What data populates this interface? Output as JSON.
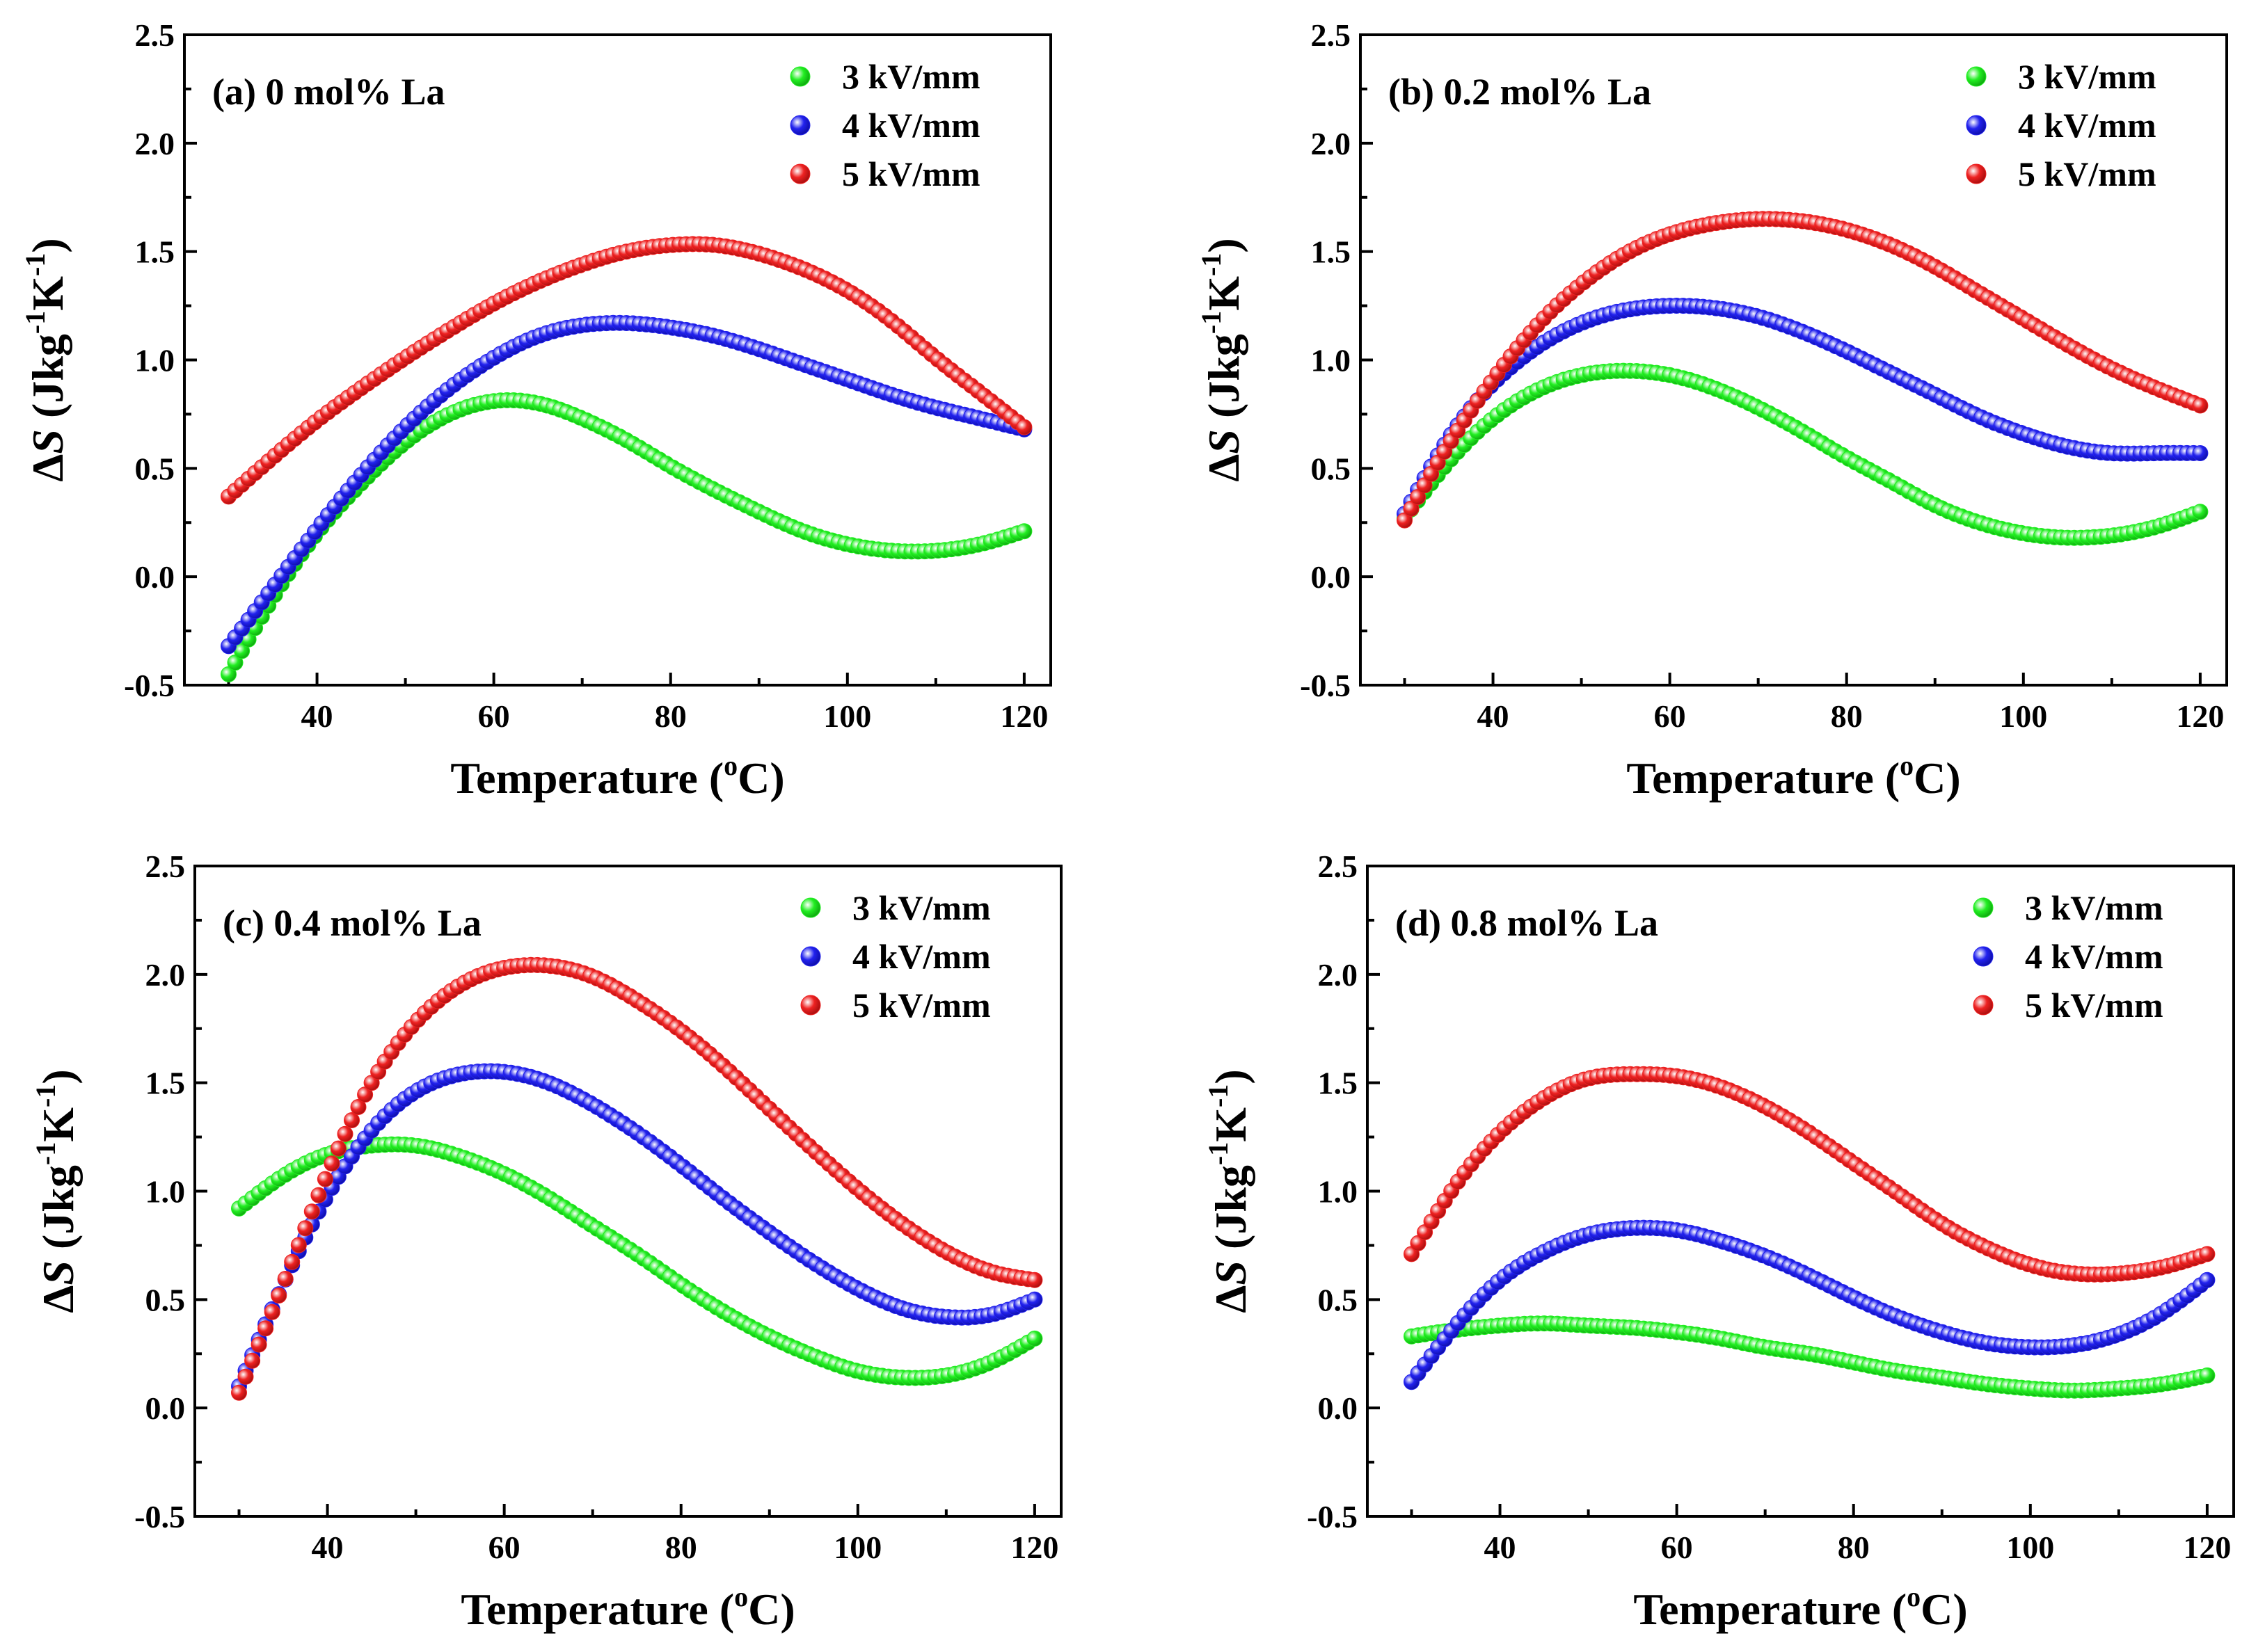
{
  "figure": {
    "type": "scatter",
    "series_legend": [
      "3 kV/mm",
      "4 kV/mm",
      "5 kV/mm"
    ]
  },
  "chart_data": [
    {
      "type": "scatter",
      "title": "(a) 0 mol% La",
      "xlabel": "Temperature (oC)",
      "ylabel": "ΔS (Jkg-1K-1)",
      "xlim": [
        25,
        123
      ],
      "ylim": [
        -0.5,
        2.5
      ],
      "xticks": [
        40,
        60,
        80,
        100,
        120
      ],
      "yticks": [
        -0.5,
        0.0,
        0.5,
        1.0,
        1.5,
        2.0,
        2.5
      ],
      "legend_position": "top-right",
      "series": [
        {
          "name": "3 kV/mm",
          "color": "#22ee22",
          "x": [
            30,
            35,
            40,
            45,
            50,
            55,
            60,
            65,
            70,
            75,
            80,
            85,
            90,
            95,
            100,
            105,
            110,
            115,
            120
          ],
          "values": [
            -0.45,
            -0.1,
            0.2,
            0.43,
            0.62,
            0.75,
            0.81,
            0.8,
            0.73,
            0.63,
            0.51,
            0.4,
            0.3,
            0.21,
            0.15,
            0.12,
            0.12,
            0.15,
            0.21
          ]
        },
        {
          "name": "4 kV/mm",
          "color": "#2222ee",
          "x": [
            30,
            35,
            40,
            45,
            50,
            55,
            60,
            65,
            70,
            75,
            80,
            85,
            90,
            95,
            100,
            105,
            110,
            115,
            120
          ],
          "values": [
            -0.32,
            -0.05,
            0.22,
            0.47,
            0.69,
            0.87,
            1.01,
            1.11,
            1.16,
            1.17,
            1.15,
            1.11,
            1.05,
            0.98,
            0.91,
            0.84,
            0.78,
            0.73,
            0.68
          ]
        },
        {
          "name": "5 kV/mm",
          "color": "#ee2222",
          "x": [
            30,
            35,
            40,
            45,
            50,
            55,
            60,
            65,
            70,
            75,
            80,
            85,
            90,
            95,
            100,
            105,
            110,
            115,
            120
          ],
          "values": [
            0.37,
            0.55,
            0.72,
            0.87,
            1.01,
            1.14,
            1.26,
            1.36,
            1.44,
            1.5,
            1.53,
            1.53,
            1.49,
            1.42,
            1.32,
            1.18,
            1.01,
            0.85,
            0.69
          ]
        }
      ]
    },
    {
      "type": "scatter",
      "title": "(b) 0.2 mol% La",
      "xlabel": "Temperature (oC)",
      "ylabel": "ΔS (Jkg-1K-1)",
      "xlim": [
        25,
        123
      ],
      "ylim": [
        -0.5,
        2.5
      ],
      "xticks": [
        40,
        60,
        80,
        100,
        120
      ],
      "yticks": [
        -0.5,
        0.0,
        0.5,
        1.0,
        1.5,
        2.0,
        2.5
      ],
      "legend_position": "top-right",
      "series": [
        {
          "name": "3 kV/mm",
          "color": "#22ee22",
          "x": [
            30,
            35,
            40,
            45,
            50,
            55,
            60,
            65,
            70,
            75,
            80,
            85,
            90,
            95,
            100,
            105,
            110,
            115,
            120
          ],
          "values": [
            0.27,
            0.53,
            0.73,
            0.86,
            0.93,
            0.95,
            0.93,
            0.87,
            0.78,
            0.67,
            0.55,
            0.44,
            0.33,
            0.25,
            0.2,
            0.18,
            0.19,
            0.23,
            0.3
          ]
        },
        {
          "name": "4 kV/mm",
          "color": "#2222ee",
          "x": [
            30,
            35,
            40,
            45,
            50,
            55,
            60,
            65,
            70,
            75,
            80,
            85,
            90,
            95,
            100,
            105,
            110,
            115,
            120
          ],
          "values": [
            0.29,
            0.64,
            0.89,
            1.06,
            1.17,
            1.23,
            1.25,
            1.24,
            1.2,
            1.13,
            1.04,
            0.94,
            0.84,
            0.74,
            0.66,
            0.6,
            0.57,
            0.57,
            0.57
          ]
        },
        {
          "name": "5 kV/mm",
          "color": "#ee2222",
          "x": [
            30,
            35,
            40,
            45,
            50,
            55,
            60,
            65,
            70,
            75,
            80,
            85,
            90,
            95,
            100,
            105,
            110,
            115,
            120
          ],
          "values": [
            0.26,
            0.61,
            0.91,
            1.16,
            1.35,
            1.49,
            1.58,
            1.63,
            1.65,
            1.64,
            1.6,
            1.53,
            1.43,
            1.31,
            1.19,
            1.07,
            0.96,
            0.87,
            0.79
          ]
        }
      ]
    },
    {
      "type": "scatter",
      "title": "(c) 0.4 mol% La",
      "xlabel": "Temperature (oC)",
      "ylabel": "ΔS (Jkg-1K-1)",
      "xlim": [
        25,
        123
      ],
      "ylim": [
        -0.5,
        2.5
      ],
      "xticks": [
        40,
        60,
        80,
        100,
        120
      ],
      "yticks": [
        -0.5,
        0.0,
        0.5,
        1.0,
        1.5,
        2.0,
        2.5
      ],
      "legend_position": "top-right",
      "series": [
        {
          "name": "3 kV/mm",
          "color": "#22ee22",
          "x": [
            30,
            35,
            40,
            45,
            50,
            55,
            60,
            65,
            70,
            75,
            80,
            85,
            90,
            95,
            100,
            105,
            110,
            115,
            120
          ],
          "values": [
            0.92,
            1.07,
            1.17,
            1.21,
            1.21,
            1.16,
            1.08,
            0.97,
            0.84,
            0.71,
            0.57,
            0.44,
            0.33,
            0.24,
            0.17,
            0.14,
            0.15,
            0.21,
            0.32
          ]
        },
        {
          "name": "4 kV/mm",
          "color": "#2222ee",
          "x": [
            30,
            35,
            40,
            45,
            50,
            55,
            60,
            65,
            70,
            75,
            80,
            85,
            90,
            95,
            100,
            105,
            110,
            115,
            120
          ],
          "values": [
            0.1,
            0.57,
            0.98,
            1.28,
            1.46,
            1.54,
            1.55,
            1.5,
            1.4,
            1.27,
            1.12,
            0.96,
            0.81,
            0.67,
            0.55,
            0.46,
            0.42,
            0.43,
            0.5
          ]
        },
        {
          "name": "5 kV/mm",
          "color": "#ee2222",
          "x": [
            30,
            35,
            40,
            45,
            50,
            55,
            60,
            65,
            70,
            75,
            80,
            85,
            90,
            95,
            100,
            105,
            110,
            115,
            120
          ],
          "values": [
            0.07,
            0.57,
            1.08,
            1.5,
            1.78,
            1.95,
            2.03,
            2.04,
            1.99,
            1.88,
            1.74,
            1.57,
            1.38,
            1.19,
            1.01,
            0.85,
            0.72,
            0.63,
            0.59
          ]
        }
      ]
    },
    {
      "type": "scatter",
      "title": "(d) 0.8 mol% La",
      "xlabel": "Temperature (oC)",
      "ylabel": "ΔS (Jkg-1K-1)",
      "xlim": [
        25,
        123
      ],
      "ylim": [
        -0.5,
        2.5
      ],
      "xticks": [
        40,
        60,
        80,
        100,
        120
      ],
      "yticks": [
        -0.5,
        0.0,
        0.5,
        1.0,
        1.5,
        2.0,
        2.5
      ],
      "legend_position": "top-right",
      "series": [
        {
          "name": "3 kV/mm",
          "color": "#22ee22",
          "x": [
            30,
            35,
            40,
            45,
            50,
            55,
            60,
            65,
            70,
            75,
            80,
            85,
            90,
            95,
            100,
            105,
            110,
            115,
            120
          ],
          "values": [
            0.33,
            0.36,
            0.38,
            0.39,
            0.38,
            0.37,
            0.35,
            0.32,
            0.28,
            0.25,
            0.21,
            0.17,
            0.14,
            0.11,
            0.09,
            0.08,
            0.09,
            0.11,
            0.15
          ]
        },
        {
          "name": "4 kV/mm",
          "color": "#2222ee",
          "x": [
            30,
            35,
            40,
            45,
            50,
            55,
            60,
            65,
            70,
            75,
            80,
            85,
            90,
            95,
            100,
            105,
            110,
            115,
            120
          ],
          "values": [
            0.12,
            0.38,
            0.59,
            0.72,
            0.8,
            0.83,
            0.82,
            0.77,
            0.7,
            0.61,
            0.51,
            0.42,
            0.35,
            0.3,
            0.28,
            0.29,
            0.34,
            0.44,
            0.59
          ]
        },
        {
          "name": "5 kV/mm",
          "color": "#ee2222",
          "x": [
            30,
            35,
            40,
            45,
            50,
            55,
            60,
            65,
            70,
            75,
            80,
            85,
            90,
            95,
            100,
            105,
            110,
            115,
            120
          ],
          "values": [
            0.71,
            1.03,
            1.27,
            1.43,
            1.52,
            1.54,
            1.53,
            1.48,
            1.39,
            1.27,
            1.13,
            0.99,
            0.85,
            0.74,
            0.66,
            0.62,
            0.62,
            0.65,
            0.71
          ]
        }
      ]
    }
  ]
}
